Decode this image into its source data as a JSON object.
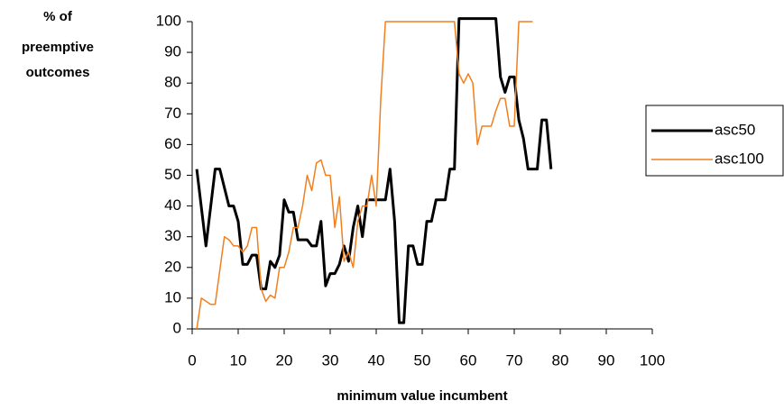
{
  "chart_data": {
    "type": "line",
    "ylabel": [
      "% of",
      "preemptive",
      "outcomes"
    ],
    "xlabel": "minimum value incumbent",
    "xlim": [
      0,
      100
    ],
    "xticks": [
      0,
      10,
      20,
      30,
      40,
      50,
      60,
      70,
      80,
      90,
      100
    ],
    "ylim": [
      0,
      100
    ],
    "yticks": [
      0,
      10,
      20,
      30,
      40,
      50,
      60,
      70,
      80,
      90,
      100
    ],
    "grid": false,
    "legend": "right",
    "series": [
      {
        "name": "asc50",
        "color": "#000000",
        "x": [
          1,
          3,
          5,
          6,
          8,
          9,
          10,
          11,
          12,
          13,
          14,
          15,
          16,
          17,
          18,
          19,
          20,
          21,
          22,
          23,
          24,
          25,
          26,
          27,
          28,
          29,
          30,
          31,
          32,
          33,
          34,
          35,
          36,
          37,
          38,
          39,
          40,
          41,
          42,
          43,
          44,
          45,
          46,
          47,
          48,
          49,
          50,
          51,
          52,
          53,
          54,
          55,
          56,
          57,
          58,
          66,
          67,
          68,
          69,
          70,
          71,
          72,
          73,
          74,
          75,
          76,
          77,
          78
        ],
        "values": [
          52,
          27,
          52,
          52,
          40,
          40,
          35,
          21,
          21,
          24,
          24,
          13,
          13,
          22,
          20,
          24,
          42,
          38,
          38,
          29,
          29,
          29,
          27,
          27,
          35,
          14,
          18,
          18,
          21,
          27,
          22,
          33,
          40,
          30,
          42,
          42,
          42,
          42,
          42,
          52,
          35,
          2,
          2,
          27,
          27,
          21,
          21,
          35,
          35,
          42,
          42,
          42,
          52,
          52,
          101,
          101,
          82,
          77,
          82,
          82,
          68,
          62,
          52,
          52,
          52,
          68,
          68,
          52
        ]
      },
      {
        "name": "asc100",
        "color": "#f07f1f",
        "x": [
          1,
          2,
          3,
          4,
          5,
          7,
          8,
          9,
          10,
          11,
          12,
          13,
          14,
          15,
          16,
          17,
          18,
          19,
          20,
          21,
          22,
          23,
          24,
          25,
          26,
          27,
          28,
          29,
          30,
          31,
          32,
          33,
          34,
          35,
          36,
          37,
          38,
          39,
          40,
          41,
          42,
          57,
          58,
          59,
          60,
          61,
          62,
          63,
          64,
          65,
          66,
          67,
          68,
          69,
          70,
          71,
          74
        ],
        "values": [
          0,
          10,
          9,
          8,
          8,
          30,
          29,
          27,
          27,
          25,
          27,
          33,
          33,
          13,
          9,
          11,
          10,
          20,
          20,
          25,
          33,
          33,
          40,
          50,
          45,
          54,
          55,
          50,
          50,
          33,
          43,
          22,
          25,
          20,
          35,
          40,
          40,
          50,
          40,
          75,
          100,
          100,
          83,
          80,
          83,
          80,
          60,
          66,
          66,
          66,
          71,
          75,
          75,
          66,
          66,
          100,
          100
        ]
      }
    ]
  }
}
